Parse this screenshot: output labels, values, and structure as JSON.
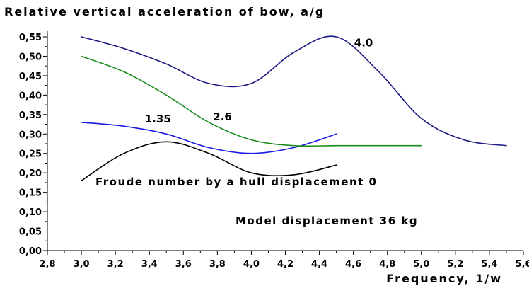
{
  "chart_data": {
    "type": "line",
    "title": "Relative vertical acceleration of bow, a/g",
    "xlabel": "Frequency, 1/w",
    "ylabel": "",
    "xlim": [
      2.8,
      5.6
    ],
    "ylim": [
      0.0,
      0.55
    ],
    "x_ticks": [
      "2,8",
      "3,0",
      "3,2",
      "3,4",
      "3,6",
      "3,8",
      "4,0",
      "4,2",
      "4,4",
      "4,6",
      "4,8",
      "5,0",
      "5,2",
      "5,4",
      "5,6"
    ],
    "y_ticks": [
      "0,00",
      "0,05",
      "0,10",
      "0,15",
      "0,20",
      "0,25",
      "0,30",
      "0,35",
      "0,40",
      "0,45",
      "0,50",
      "0,55"
    ],
    "grid": false,
    "legend": "none",
    "series": [
      {
        "name": "0",
        "color": "#000000",
        "x": [
          3.0,
          3.25,
          3.5,
          3.75,
          4.0,
          4.25,
          4.5
        ],
        "y": [
          0.18,
          0.25,
          0.28,
          0.25,
          0.2,
          0.195,
          0.22
        ]
      },
      {
        "name": "1.35",
        "color": "#1a1ae6",
        "x": [
          3.0,
          3.25,
          3.5,
          3.75,
          4.0,
          4.25,
          4.5
        ],
        "y": [
          0.33,
          0.32,
          0.3,
          0.265,
          0.25,
          0.265,
          0.3
        ]
      },
      {
        "name": "2.6",
        "color": "#1a8c1a",
        "x": [
          3.0,
          3.25,
          3.5,
          3.75,
          4.0,
          4.25,
          4.5,
          4.75,
          5.0
        ],
        "y": [
          0.5,
          0.46,
          0.4,
          0.33,
          0.285,
          0.27,
          0.27,
          0.27,
          0.27
        ]
      },
      {
        "name": "4.0",
        "color": "#1a1a80",
        "x": [
          3.0,
          3.25,
          3.5,
          3.75,
          4.0,
          4.25,
          4.5,
          4.75,
          5.0,
          5.25,
          5.5
        ],
        "y": [
          0.55,
          0.52,
          0.48,
          0.43,
          0.43,
          0.51,
          0.55,
          0.46,
          0.34,
          0.285,
          0.27
        ]
      }
    ],
    "annotations": [
      "Froude number by a hull displacement 0",
      "Model displacement 36 kg"
    ]
  }
}
